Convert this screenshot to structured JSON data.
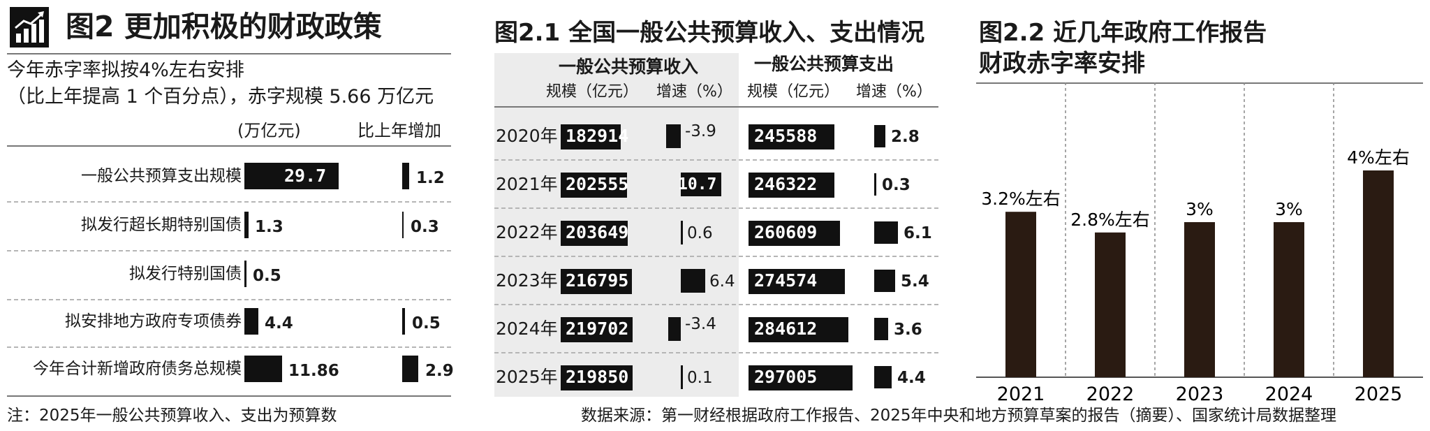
{
  "p1": {
    "title": "图2 更加积极的财政政策",
    "sub1": "今年赤字率拟按4%左右安排",
    "sub2": "（比上年提高 1 个百分点），赤字规模 5.66 万亿元",
    "unit_header": "(万亿元)",
    "incr_header": "比上年增加",
    "note": "注：2025年一般公共预算收入、支出为预算数"
  },
  "p2": {
    "title": "图2.1 全国一般公共预算收入、支出情况",
    "income_header": "一般公共预算收入",
    "expense_header": "一般公共预算支出",
    "scale_label": "规模（亿元）",
    "growth_label": "增速（%）",
    "source": "数据来源：第一财经根据政府工作报告、2025年中央和地方预算草案的报告（摘要）、国家统计局数据整理"
  },
  "p3": {
    "title1": "图2.2 近几年政府工作报告",
    "title2": "财政赤字率安排"
  },
  "chart_data": [
    {
      "type": "bar",
      "title": "图2 更加积极的财政政策",
      "categories": [
        "一般公共预算支出规模",
        "拟发行超长期特别国债",
        "拟发行特别国债",
        "拟安排地方政府专项债券",
        "今年合计新增政府债务总规模"
      ],
      "series": [
        {
          "name": "(万亿元)",
          "values": [
            29.7,
            1.3,
            0.5,
            4.4,
            11.86
          ],
          "labels": [
            "29.7",
            "1.3",
            "0.5",
            "4.4",
            "11.86"
          ]
        },
        {
          "name": "比上年增加",
          "values": [
            1.2,
            0.3,
            null,
            0.5,
            2.9
          ],
          "labels": [
            "1.2",
            "0.3",
            "",
            "0.5",
            "2.9"
          ]
        }
      ]
    },
    {
      "type": "table",
      "title": "图2.1 全国一般公共预算收入、支出情况",
      "years": [
        "2020年",
        "2021年",
        "2022年",
        "2023年",
        "2024年",
        "2025年"
      ],
      "income_scale": [
        182914,
        202555,
        203649,
        216795,
        219702,
        219850
      ],
      "income_growth": [
        -3.9,
        10.7,
        0.6,
        6.4,
        -3.4,
        0.1
      ],
      "income_growth_labels": [
        "-3.9",
        "10.7",
        "0.6",
        "6.4",
        "-3.4",
        "0.1"
      ],
      "expense_scale": [
        245588,
        246322,
        260609,
        274574,
        284612,
        297005
      ],
      "expense_growth": [
        2.8,
        0.3,
        6.1,
        5.4,
        3.6,
        4.4
      ],
      "expense_growth_labels": [
        "2.8",
        "0.3",
        "6.1",
        "5.4",
        "3.6",
        "4.4"
      ]
    },
    {
      "type": "bar",
      "title": "图2.2 近几年政府工作报告 财政赤字率安排",
      "categories": [
        "2021",
        "2022",
        "2023",
        "2024",
        "2025"
      ],
      "values": [
        3.2,
        2.8,
        3,
        3,
        4
      ],
      "labels": [
        "3.2%左右",
        "2.8%左右",
        "3%",
        "3%",
        "4%左右"
      ]
    }
  ]
}
